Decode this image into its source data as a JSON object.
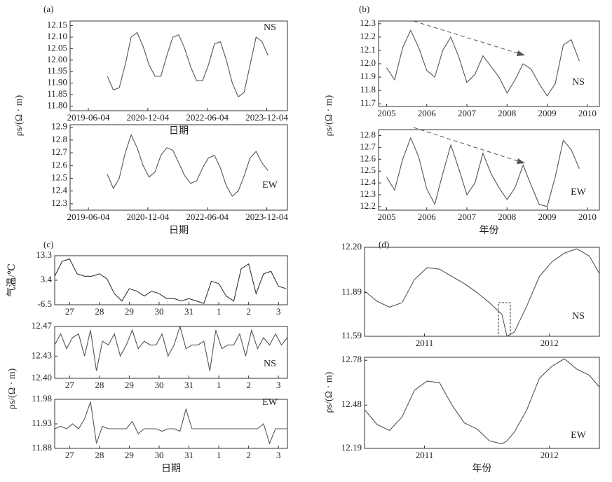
{
  "chart_data": [
    {
      "type": "line",
      "panel": "(a)",
      "ylabel": "ρs/(Ω · m)",
      "xlabel": "日期",
      "annotation": "NS",
      "x": [
        2019.9,
        2020.05,
        2020.2,
        2020.35,
        2020.5,
        2020.65,
        2020.8,
        2020.95,
        2021.1,
        2021.25,
        2021.4,
        2021.55,
        2021.7,
        2021.85,
        2022.0,
        2022.15,
        2022.3,
        2022.45,
        2022.6,
        2022.75,
        2022.9,
        2023.05,
        2023.2,
        2023.35,
        2023.5,
        2023.65,
        2023.8,
        2023.95
      ],
      "values": [
        11.93,
        11.87,
        11.88,
        11.98,
        12.1,
        12.12,
        12.06,
        11.98,
        11.93,
        11.93,
        12.02,
        12.1,
        12.11,
        12.05,
        11.97,
        11.91,
        11.91,
        11.98,
        12.07,
        12.08,
        12.0,
        11.9,
        11.84,
        11.86,
        11.98,
        12.1,
        12.08,
        12.02
      ],
      "color": "#555555",
      "xlim": [
        2018.96,
        2024.44
      ],
      "xticks": [
        {
          "value": 2019.42,
          "label": "2019-06-04"
        },
        {
          "value": 2020.92,
          "label": "2020-12-04"
        },
        {
          "value": 2022.42,
          "label": "2022-06-04"
        },
        {
          "value": 2023.92,
          "label": "2023-12-04"
        }
      ],
      "ylim": [
        11.78,
        12.17
      ],
      "yticks": [
        {
          "value": 11.8,
          "label": "11.80"
        },
        11.85,
        {
          "value": 11.9,
          "label": "11.90"
        },
        11.95,
        {
          "value": 12.0,
          "label": "12.00"
        },
        12.05,
        {
          "value": 12.1,
          "label": "12.10"
        },
        12.15
      ]
    },
    {
      "type": "line",
      "xlabel": "日期",
      "annotation": "EW",
      "x": [
        2019.9,
        2020.05,
        2020.2,
        2020.35,
        2020.5,
        2020.65,
        2020.8,
        2020.95,
        2021.1,
        2021.25,
        2021.4,
        2021.55,
        2021.7,
        2021.85,
        2022.0,
        2022.15,
        2022.3,
        2022.45,
        2022.6,
        2022.75,
        2022.9,
        2023.05,
        2023.2,
        2023.35,
        2023.5,
        2023.65,
        2023.8,
        2023.95
      ],
      "values": [
        12.53,
        12.42,
        12.5,
        12.7,
        12.84,
        12.74,
        12.6,
        12.51,
        12.55,
        12.68,
        12.74,
        12.72,
        12.62,
        12.52,
        12.46,
        12.48,
        12.58,
        12.66,
        12.68,
        12.58,
        12.44,
        12.36,
        12.4,
        12.52,
        12.66,
        12.71,
        12.62,
        12.56
      ],
      "color": "#555555",
      "xlim": [
        2018.96,
        2024.44
      ],
      "xticks": [
        {
          "value": 2019.42,
          "label": "2019-06-04"
        },
        {
          "value": 2020.92,
          "label": "2020-12-04"
        },
        {
          "value": 2022.42,
          "label": "2022-06-04"
        },
        {
          "value": 2023.92,
          "label": "2023-12-04"
        }
      ],
      "ylim": [
        12.25,
        12.92
      ],
      "yticks": [
        12.3,
        12.4,
        12.5,
        12.6,
        12.7,
        12.8,
        12.9
      ]
    },
    {
      "type": "line",
      "panel": "(b)",
      "ylabel": "ρs/(Ω · m)",
      "annotation": "NS",
      "x": [
        2005.0,
        2005.2,
        2005.4,
        2005.6,
        2005.8,
        2006.0,
        2006.2,
        2006.4,
        2006.6,
        2006.8,
        2007.0,
        2007.2,
        2007.4,
        2007.6,
        2007.8,
        2008.0,
        2008.2,
        2008.4,
        2008.6,
        2008.8,
        2009.0,
        2009.2,
        2009.4,
        2009.6,
        2009.8
      ],
      "values": [
        11.97,
        11.88,
        12.12,
        12.25,
        12.12,
        11.95,
        11.9,
        12.1,
        12.2,
        12.05,
        11.86,
        11.92,
        12.06,
        11.98,
        11.9,
        11.78,
        11.88,
        12.0,
        11.96,
        11.85,
        11.76,
        11.85,
        12.14,
        12.18,
        12.02
      ],
      "color": "#555555",
      "xlim": [
        2004.8,
        2010.3
      ],
      "xticks": [
        2005,
        2006,
        2007,
        2008,
        2009,
        2010
      ],
      "ylim": [
        11.68,
        12.32
      ],
      "yticks": [
        11.7,
        11.8,
        11.9,
        {
          "value": 12.0,
          "label": "12.0"
        },
        12.1,
        12.2,
        12.3
      ]
    },
    {
      "type": "line",
      "xlabel": "年份",
      "annotation": "EW",
      "x": [
        2005.0,
        2005.2,
        2005.4,
        2005.6,
        2005.8,
        2006.0,
        2006.2,
        2006.4,
        2006.6,
        2006.8,
        2007.0,
        2007.2,
        2007.4,
        2007.6,
        2007.8,
        2008.0,
        2008.2,
        2008.4,
        2008.6,
        2008.8,
        2009.0,
        2009.2,
        2009.4,
        2009.6,
        2009.8
      ],
      "values": [
        12.45,
        12.34,
        12.6,
        12.78,
        12.62,
        12.35,
        12.22,
        12.48,
        12.72,
        12.52,
        12.3,
        12.4,
        12.65,
        12.48,
        12.36,
        12.26,
        12.36,
        12.55,
        12.38,
        12.22,
        12.2,
        12.45,
        12.76,
        12.68,
        12.52
      ],
      "color": "#555555",
      "xlim": [
        2004.8,
        2010.3
      ],
      "xticks": [
        2005,
        2006,
        2007,
        2008,
        2009,
        2010
      ],
      "ylim": [
        12.17,
        12.85
      ],
      "yticks": [
        12.2,
        12.3,
        12.4,
        12.5,
        12.6,
        12.7,
        12.8
      ]
    },
    {
      "type": "line",
      "panel": "(c)",
      "ylabel": "气温/℃",
      "x": [
        0,
        0.25,
        0.5,
        0.75,
        1,
        1.25,
        1.5,
        1.75,
        2,
        2.25,
        2.5,
        2.75,
        3,
        3.25,
        3.5,
        3.75,
        4,
        4.25,
        4.5,
        4.75,
        5,
        5.25,
        5.5,
        5.75,
        6,
        6.25,
        6.5,
        6.75,
        7,
        7.25,
        7.5,
        7.75
      ],
      "values": [
        5,
        11,
        12,
        6,
        5,
        5,
        6,
        4,
        -2,
        -5,
        0,
        -1,
        -3,
        -1,
        -2,
        -4,
        -4,
        -5,
        -4,
        -5,
        -6,
        3,
        2,
        -3,
        -5,
        8,
        10,
        -2,
        6,
        7,
        1,
        0
      ],
      "color": "#333333",
      "xlim": [
        0,
        7.8
      ],
      "xticks": [
        {
          "value": 0.5,
          "label": "27"
        },
        {
          "value": 1.5,
          "label": "28"
        },
        {
          "value": 2.5,
          "label": "29"
        },
        {
          "value": 3.5,
          "label": "30"
        },
        {
          "value": 4.5,
          "label": "31"
        },
        {
          "value": 5.5,
          "label": "1"
        },
        {
          "value": 6.5,
          "label": "2"
        },
        {
          "value": 7.5,
          "label": "3"
        }
      ],
      "ylim": [
        -6.5,
        13.3
      ],
      "yticks": [
        -6.5,
        3.4,
        13.3
      ]
    },
    {
      "type": "line",
      "ylabel": "ρs/(Ω · m)",
      "annotation": "NS",
      "x": [
        0,
        0.2,
        0.4,
        0.6,
        0.8,
        1,
        1.2,
        1.4,
        1.6,
        1.8,
        2,
        2.2,
        2.4,
        2.6,
        2.8,
        3,
        3.2,
        3.4,
        3.6,
        3.8,
        4,
        4.2,
        4.4,
        4.6,
        4.8,
        5,
        5.2,
        5.4,
        5.6,
        5.8,
        6,
        6.2,
        6.4,
        6.6,
        6.8,
        7,
        7.2,
        7.4,
        7.6,
        7.8
      ],
      "values": [
        12.445,
        12.46,
        12.44,
        12.455,
        12.46,
        12.43,
        12.465,
        12.41,
        12.45,
        12.445,
        12.46,
        12.43,
        12.445,
        12.465,
        12.44,
        12.45,
        12.445,
        12.445,
        12.46,
        12.43,
        12.445,
        12.47,
        12.44,
        12.445,
        12.445,
        12.45,
        12.41,
        12.465,
        12.44,
        12.445,
        12.445,
        12.46,
        12.43,
        12.465,
        12.44,
        12.455,
        12.445,
        12.46,
        12.445,
        12.455
      ],
      "color": "#555555",
      "xlim": [
        0,
        7.8
      ],
      "xticks": [
        {
          "value": 0.5,
          "label": "27"
        },
        {
          "value": 1.5,
          "label": "28"
        },
        {
          "value": 2.5,
          "label": "29"
        },
        {
          "value": 3.5,
          "label": "30"
        },
        {
          "value": 4.5,
          "label": "31"
        },
        {
          "value": 5.5,
          "label": "1"
        },
        {
          "value": 6.5,
          "label": "2"
        },
        {
          "value": 7.5,
          "label": "3"
        }
      ],
      "ylim": [
        12.4,
        12.47
      ],
      "yticks": [
        {
          "value": 12.4,
          "label": "12.40"
        },
        12.43,
        12.47
      ]
    },
    {
      "type": "line",
      "xlabel": "日期",
      "annotation": "EW",
      "x": [
        0,
        0.2,
        0.4,
        0.6,
        0.8,
        1,
        1.2,
        1.4,
        1.6,
        1.8,
        2,
        2.2,
        2.4,
        2.6,
        2.8,
        3,
        3.2,
        3.4,
        3.6,
        3.8,
        4,
        4.2,
        4.4,
        4.6,
        4.8,
        5,
        5.2,
        5.4,
        5.6,
        5.8,
        6,
        6.2,
        6.4,
        6.6,
        6.8,
        7,
        7.2,
        7.4,
        7.6,
        7.8
      ],
      "values": [
        11.92,
        11.925,
        11.92,
        11.93,
        11.92,
        11.94,
        11.975,
        11.89,
        11.925,
        11.92,
        11.92,
        11.92,
        11.92,
        11.935,
        11.91,
        11.92,
        11.92,
        11.92,
        11.915,
        11.92,
        11.92,
        11.915,
        11.96,
        11.92,
        11.92,
        11.92,
        11.92,
        11.92,
        11.92,
        11.92,
        11.92,
        11.92,
        11.92,
        11.92,
        11.92,
        11.93,
        11.89,
        11.92,
        11.92,
        11.92
      ],
      "color": "#555555",
      "xlim": [
        0,
        7.8
      ],
      "xticks": [
        {
          "value": 0.5,
          "label": "27"
        },
        {
          "value": 1.5,
          "label": "28"
        },
        {
          "value": 2.5,
          "label": "29"
        },
        {
          "value": 3.5,
          "label": "30"
        },
        {
          "value": 4.5,
          "label": "31"
        },
        {
          "value": 5.5,
          "label": "1"
        },
        {
          "value": 6.5,
          "label": "2"
        },
        {
          "value": 7.5,
          "label": "3"
        }
      ],
      "ylim": [
        11.88,
        11.98
      ],
      "yticks": [
        11.88,
        11.93,
        11.98
      ]
    },
    {
      "type": "line",
      "panel": "(d)",
      "ylabel": "ρs/(Ω · m)",
      "annotation": "NS",
      "x": [
        2010.52,
        2010.62,
        2010.72,
        2010.82,
        2010.92,
        2011.02,
        2011.12,
        2011.22,
        2011.32,
        2011.42,
        2011.52,
        2011.62,
        2011.66,
        2011.72,
        2011.82,
        2011.92,
        2012.02,
        2012.12,
        2012.22,
        2012.32,
        2012.4
      ],
      "values": [
        11.9,
        11.83,
        11.79,
        11.82,
        11.98,
        12.06,
        12.05,
        12.0,
        11.95,
        11.89,
        11.82,
        11.74,
        11.59,
        11.62,
        11.8,
        12.0,
        12.1,
        12.16,
        12.19,
        12.14,
        12.02
      ],
      "color": "#555555",
      "xlim": [
        2010.52,
        2012.4
      ],
      "xticks": [
        2011,
        2012
      ],
      "ylim": [
        11.59,
        12.2
      ],
      "yticks": [
        11.59,
        11.89,
        {
          "value": 12.2,
          "label": "12.20"
        }
      ]
    },
    {
      "type": "line",
      "xlabel": "年份",
      "annotation": "EW",
      "x": [
        2010.52,
        2010.62,
        2010.72,
        2010.82,
        2010.92,
        2011.02,
        2011.12,
        2011.22,
        2011.32,
        2011.42,
        2011.52,
        2011.62,
        2011.66,
        2011.72,
        2011.82,
        2011.92,
        2012.02,
        2012.12,
        2012.22,
        2012.32,
        2012.4
      ],
      "values": [
        12.45,
        12.35,
        12.31,
        12.4,
        12.58,
        12.64,
        12.63,
        12.48,
        12.36,
        12.32,
        12.24,
        12.22,
        12.24,
        12.3,
        12.45,
        12.66,
        12.74,
        12.79,
        12.72,
        12.68,
        12.6
      ],
      "color": "#555555",
      "xlim": [
        2010.52,
        2012.4
      ],
      "xticks": [
        2011,
        2012
      ],
      "ylim": [
        12.19,
        12.8
      ],
      "yticks": [
        12.19,
        12.48,
        12.78
      ]
    }
  ]
}
